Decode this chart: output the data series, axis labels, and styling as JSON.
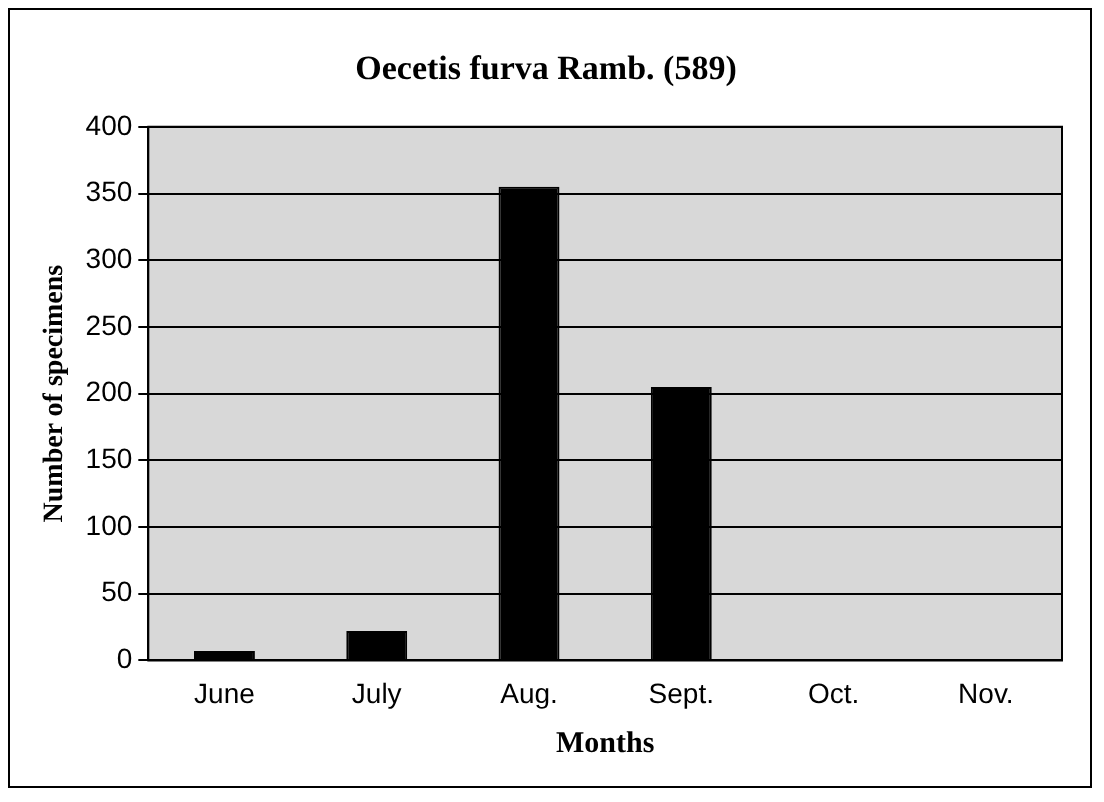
{
  "chart_data": {
    "type": "bar",
    "title": "Oecetis furva Ramb. (589)",
    "xlabel": "Months",
    "ylabel": "Number of specimens",
    "categories": [
      "June",
      "July",
      "Aug.",
      "Sept.",
      "Oct.",
      "Nov."
    ],
    "values": [
      7,
      22,
      355,
      205,
      0,
      0
    ],
    "color": "#000000",
    "ylim": [
      0,
      400
    ],
    "yticks": [
      0,
      50,
      100,
      150,
      200,
      250,
      300,
      350,
      400
    ],
    "grid": "y",
    "legend": false
  }
}
